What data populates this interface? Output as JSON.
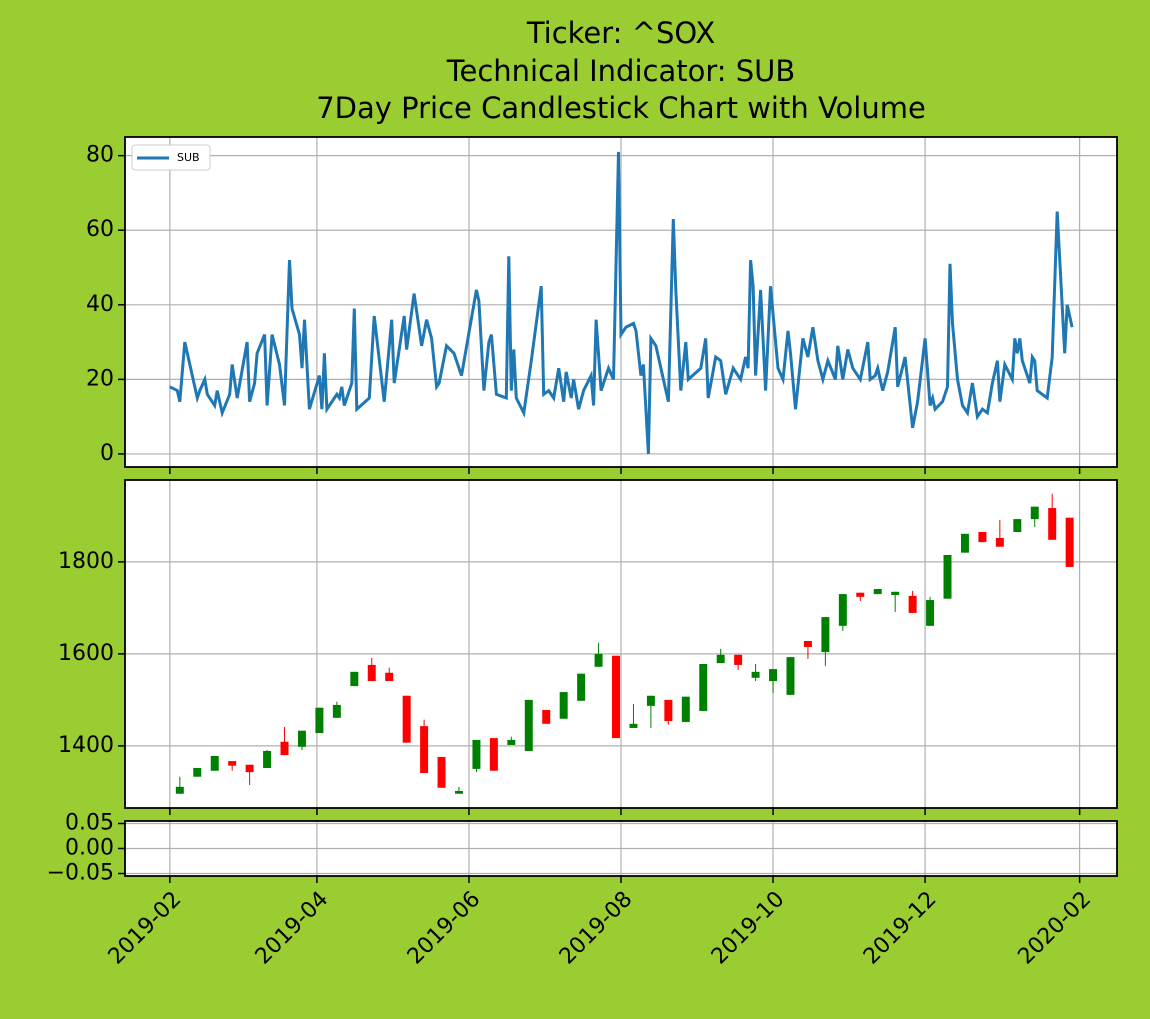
{
  "chart_data": [
    {
      "type": "line",
      "title": [
        "Ticker: ^SOX",
        "Technical Indicator: SUB",
        "7Day Price Candlestick Chart with Volume"
      ],
      "x": [
        "2019-02-01",
        "2019-02-04",
        "2019-02-05",
        "2019-02-07",
        "2019-02-10",
        "2019-02-12",
        "2019-02-13",
        "2019-02-15",
        "2019-02-16",
        "2019-02-19",
        "2019-02-20",
        "2019-02-22",
        "2019-02-25",
        "2019-02-26",
        "2019-02-28",
        "2019-03-04",
        "2019-03-05",
        "2019-03-07",
        "2019-03-08",
        "2019-03-11",
        "2019-03-12",
        "2019-03-14",
        "2019-03-17",
        "2019-03-19",
        "2019-03-21",
        "2019-03-22",
        "2019-03-25",
        "2019-03-26",
        "2019-03-27",
        "2019-03-29",
        "2019-04-02",
        "2019-04-03",
        "2019-04-04",
        "2019-04-05",
        "2019-04-09",
        "2019-04-10",
        "2019-04-11",
        "2019-04-12",
        "2019-04-15",
        "2019-04-16",
        "2019-04-17",
        "2019-04-22",
        "2019-04-24",
        "2019-04-28",
        "2019-05-01",
        "2019-05-02",
        "2019-05-06",
        "2019-05-07",
        "2019-05-10",
        "2019-05-13",
        "2019-05-15",
        "2019-05-17",
        "2019-05-19",
        "2019-05-20",
        "2019-05-23",
        "2019-05-26",
        "2019-05-29",
        "2019-06-04",
        "2019-06-05",
        "2019-06-07",
        "2019-06-09",
        "2019-06-10",
        "2019-06-12",
        "2019-06-16",
        "2019-06-17",
        "2019-06-18",
        "2019-06-19",
        "2019-06-20",
        "2019-06-23",
        "2019-06-26",
        "2019-06-30",
        "2019-07-01",
        "2019-07-03",
        "2019-07-05",
        "2019-07-07",
        "2019-07-09",
        "2019-07-10",
        "2019-07-12",
        "2019-07-13",
        "2019-07-15",
        "2019-07-17",
        "2019-07-20",
        "2019-07-21",
        "2019-07-22",
        "2019-07-24",
        "2019-07-27",
        "2019-07-29",
        "2019-07-31",
        "2019-08-01",
        "2019-08-03",
        "2019-08-06",
        "2019-08-07",
        "2019-08-09",
        "2019-08-10",
        "2019-08-12",
        "2019-08-13",
        "2019-08-15",
        "2019-08-19",
        "2019-08-20",
        "2019-08-22",
        "2019-08-23",
        "2019-08-25",
        "2019-08-27",
        "2019-08-28",
        "2019-09-02",
        "2019-09-04",
        "2019-09-05",
        "2019-09-08",
        "2019-09-10",
        "2019-09-12",
        "2019-09-15",
        "2019-09-18",
        "2019-09-20",
        "2019-09-21",
        "2019-09-22",
        "2019-09-23",
        "2019-09-24",
        "2019-09-26",
        "2019-09-28",
        "2019-09-30",
        "2019-10-03",
        "2019-10-05",
        "2019-10-07",
        "2019-10-08",
        "2019-10-10",
        "2019-10-13",
        "2019-10-15",
        "2019-10-17",
        "2019-10-19",
        "2019-10-21",
        "2019-10-23",
        "2019-10-26",
        "2019-10-27",
        "2019-10-29",
        "2019-10-31",
        "2019-11-02",
        "2019-11-05",
        "2019-11-08",
        "2019-11-09",
        "2019-11-11",
        "2019-11-12",
        "2019-11-14",
        "2019-11-16",
        "2019-11-19",
        "2019-11-20",
        "2019-11-23",
        "2019-11-26",
        "2019-11-28",
        "2019-12-01",
        "2019-12-03",
        "2019-12-04",
        "2019-12-05",
        "2019-12-08",
        "2019-12-10",
        "2019-12-11",
        "2019-12-12",
        "2019-12-14",
        "2019-12-16",
        "2019-12-18",
        "2019-12-20",
        "2019-12-22",
        "2019-12-24",
        "2019-12-26",
        "2019-12-28",
        "2019-12-30",
        "2019-12-31",
        "2020-01-02",
        "2020-01-05",
        "2020-01-06",
        "2020-01-07",
        "2020-01-08",
        "2020-01-09",
        "2020-01-12",
        "2020-01-13",
        "2020-01-14",
        "2020-01-15",
        "2020-01-19",
        "2020-01-21",
        "2020-01-23",
        "2020-01-26",
        "2020-01-27",
        "2020-01-29"
      ],
      "series": [
        {
          "name": "SUB",
          "color": "#1f77b4",
          "values": [
            18,
            17,
            14,
            30,
            21,
            15,
            17,
            20,
            16,
            13,
            17,
            11,
            16,
            24,
            15,
            30,
            14,
            19,
            27,
            32,
            13,
            32,
            24,
            13,
            52,
            39,
            32,
            23,
            36,
            12,
            21,
            12,
            27,
            12,
            16,
            15,
            18,
            13,
            19,
            39,
            12,
            15,
            37,
            14,
            36,
            19,
            37,
            28,
            43,
            29,
            36,
            31,
            18,
            19,
            29,
            27,
            21,
            44,
            41,
            17,
            30,
            32,
            16,
            15,
            53,
            17,
            28,
            15,
            11,
            25,
            45,
            16,
            17,
            15,
            23,
            14,
            22,
            15,
            20,
            12,
            17,
            21,
            13,
            36,
            17,
            23,
            20,
            81,
            32,
            34,
            35,
            33,
            21,
            24,
            0,
            31,
            29,
            17,
            14,
            63,
            44,
            17,
            30,
            20,
            23,
            31,
            15,
            26,
            25,
            16,
            23,
            20,
            26,
            23,
            52,
            45,
            21,
            44,
            17,
            45,
            23,
            20,
            33,
            27,
            12,
            31,
            26,
            34,
            25,
            20,
            25,
            20,
            29,
            20,
            28,
            23,
            20,
            30,
            20,
            21,
            23,
            17,
            22,
            34,
            18,
            26,
            7,
            14,
            31,
            13,
            15,
            12,
            14,
            18,
            51,
            35,
            20,
            13,
            11,
            19,
            10,
            12,
            11,
            19,
            25,
            14,
            24,
            20,
            31,
            27,
            31,
            25,
            19,
            26,
            25,
            17,
            15,
            26,
            65,
            27,
            40,
            34
          ]
        }
      ],
      "legend": "upper left",
      "xlim": [
        "2019-01-14",
        "2020-02-16"
      ],
      "xticks": [
        "2019-02",
        "2019-04",
        "2019-06",
        "2019-08",
        "2019-10",
        "2019-12",
        "2020-02"
      ],
      "ylim": [
        -3.5,
        85
      ],
      "yticks": [
        0,
        20,
        40,
        60,
        80
      ],
      "grid": true
    },
    {
      "type": "candlestick",
      "x": [
        "2019-02-05",
        "2019-02-12",
        "2019-02-19",
        "2019-02-26",
        "2019-03-05",
        "2019-03-12",
        "2019-03-19",
        "2019-03-26",
        "2019-04-02",
        "2019-04-09",
        "2019-04-16",
        "2019-04-23",
        "2019-04-30",
        "2019-05-07",
        "2019-05-14",
        "2019-05-21",
        "2019-05-28",
        "2019-06-04",
        "2019-06-11",
        "2019-06-18",
        "2019-06-25",
        "2019-07-02",
        "2019-07-09",
        "2019-07-16",
        "2019-07-23",
        "2019-07-30",
        "2019-08-06",
        "2019-08-13",
        "2019-08-20",
        "2019-08-27",
        "2019-09-03",
        "2019-09-10",
        "2019-09-17",
        "2019-09-24",
        "2019-10-01",
        "2019-10-08",
        "2019-10-15",
        "2019-10-22",
        "2019-10-29",
        "2019-11-05",
        "2019-11-12",
        "2019-11-19",
        "2019-11-26",
        "2019-12-03",
        "2019-12-10",
        "2019-12-17",
        "2019-12-24",
        "2019-12-31",
        "2020-01-07",
        "2020-01-14",
        "2020-01-21",
        "2020-01-28"
      ],
      "open": [
        1296,
        1333,
        1346,
        1367,
        1359,
        1352,
        1409,
        1398,
        1428,
        1461,
        1530,
        1576,
        1559,
        1509,
        1443,
        1376,
        1296,
        1350,
        1417,
        1402,
        1389,
        1478,
        1459,
        1498,
        1572,
        1596,
        1439,
        1487,
        1500,
        1452,
        1476,
        1580,
        1598,
        1548,
        1541,
        1511,
        1628,
        1604,
        1661,
        1733,
        1730,
        1728,
        1726,
        1661,
        1720,
        1820,
        1865,
        1852,
        1865,
        1893,
        1917,
        1896
      ],
      "high": [
        1333,
        1352,
        1378,
        1367,
        1359,
        1391,
        1441,
        1433,
        1483,
        1496,
        1561,
        1591,
        1570,
        1509,
        1457,
        1376,
        1311,
        1413,
        1417,
        1420,
        1500,
        1478,
        1517,
        1557,
        1624,
        1596,
        1491,
        1509,
        1500,
        1507,
        1578,
        1611,
        1598,
        1578,
        1567,
        1593,
        1628,
        1680,
        1730,
        1733,
        1741,
        1735,
        1737,
        1724,
        1815,
        1861,
        1865,
        1891,
        1893,
        1920,
        1948,
        1896
      ],
      "low": [
        1296,
        1333,
        1346,
        1346,
        1315,
        1352,
        1380,
        1391,
        1428,
        1461,
        1530,
        1541,
        1541,
        1407,
        1341,
        1309,
        1296,
        1343,
        1346,
        1402,
        1389,
        1448,
        1459,
        1498,
        1572,
        1417,
        1439,
        1439,
        1446,
        1452,
        1476,
        1580,
        1565,
        1541,
        1515,
        1511,
        1589,
        1574,
        1650,
        1715,
        1730,
        1691,
        1689,
        1661,
        1720,
        1820,
        1843,
        1833,
        1865,
        1876,
        1848,
        1789
      ],
      "close": [
        1311,
        1352,
        1378,
        1357,
        1343,
        1389,
        1380,
        1433,
        1483,
        1489,
        1561,
        1541,
        1541,
        1407,
        1341,
        1309,
        1302,
        1413,
        1346,
        1413,
        1500,
        1448,
        1517,
        1557,
        1600,
        1417,
        1448,
        1509,
        1454,
        1507,
        1578,
        1598,
        1576,
        1561,
        1567,
        1593,
        1615,
        1680,
        1730,
        1724,
        1741,
        1735,
        1689,
        1717,
        1815,
        1861,
        1843,
        1833,
        1893,
        1920,
        1848,
        1789
      ],
      "up_color": "green",
      "down_color": "red",
      "xlim": [
        "2019-01-14",
        "2020-02-16"
      ],
      "xticks": [
        "2019-02",
        "2019-04",
        "2019-06",
        "2019-08",
        "2019-10",
        "2019-12",
        "2020-02"
      ],
      "ylim": [
        1265,
        1978
      ],
      "yticks": [
        1400,
        1600,
        1800
      ],
      "grid": true
    },
    {
      "type": "bar",
      "xlim": [
        "2019-01-14",
        "2020-02-16"
      ],
      "xticks": [
        "2019-02",
        "2019-04",
        "2019-06",
        "2019-08",
        "2019-10",
        "2019-12",
        "2020-02"
      ],
      "ylim": [
        -0.055,
        0.055
      ],
      "yticks": [
        {
          "value": 0.05,
          "label": "0.05"
        },
        {
          "value": 0,
          "label": "0.00"
        },
        {
          "value": -0.05,
          "label": "−0.05"
        }
      ],
      "grid": true
    }
  ]
}
